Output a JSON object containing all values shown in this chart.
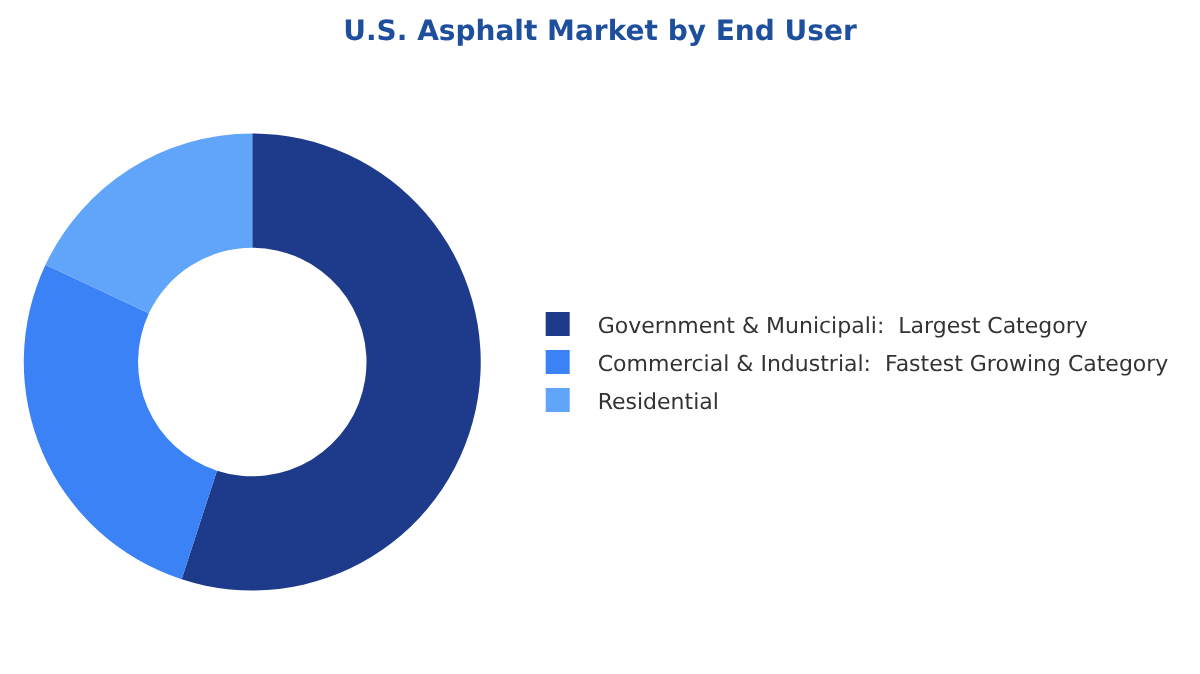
{
  "chart_data": {
    "type": "donut",
    "title": "U.S. Asphalt Market by End User",
    "categories": [
      "Government & Municipali:  Largest Category",
      "Commercial & Industrial:  Fastest Growing Category",
      "Residential"
    ],
    "values": [
      55,
      27,
      18
    ],
    "colors": [
      "#1e3a8a",
      "#3b82f6",
      "#60a5fa"
    ],
    "legend": "right"
  }
}
